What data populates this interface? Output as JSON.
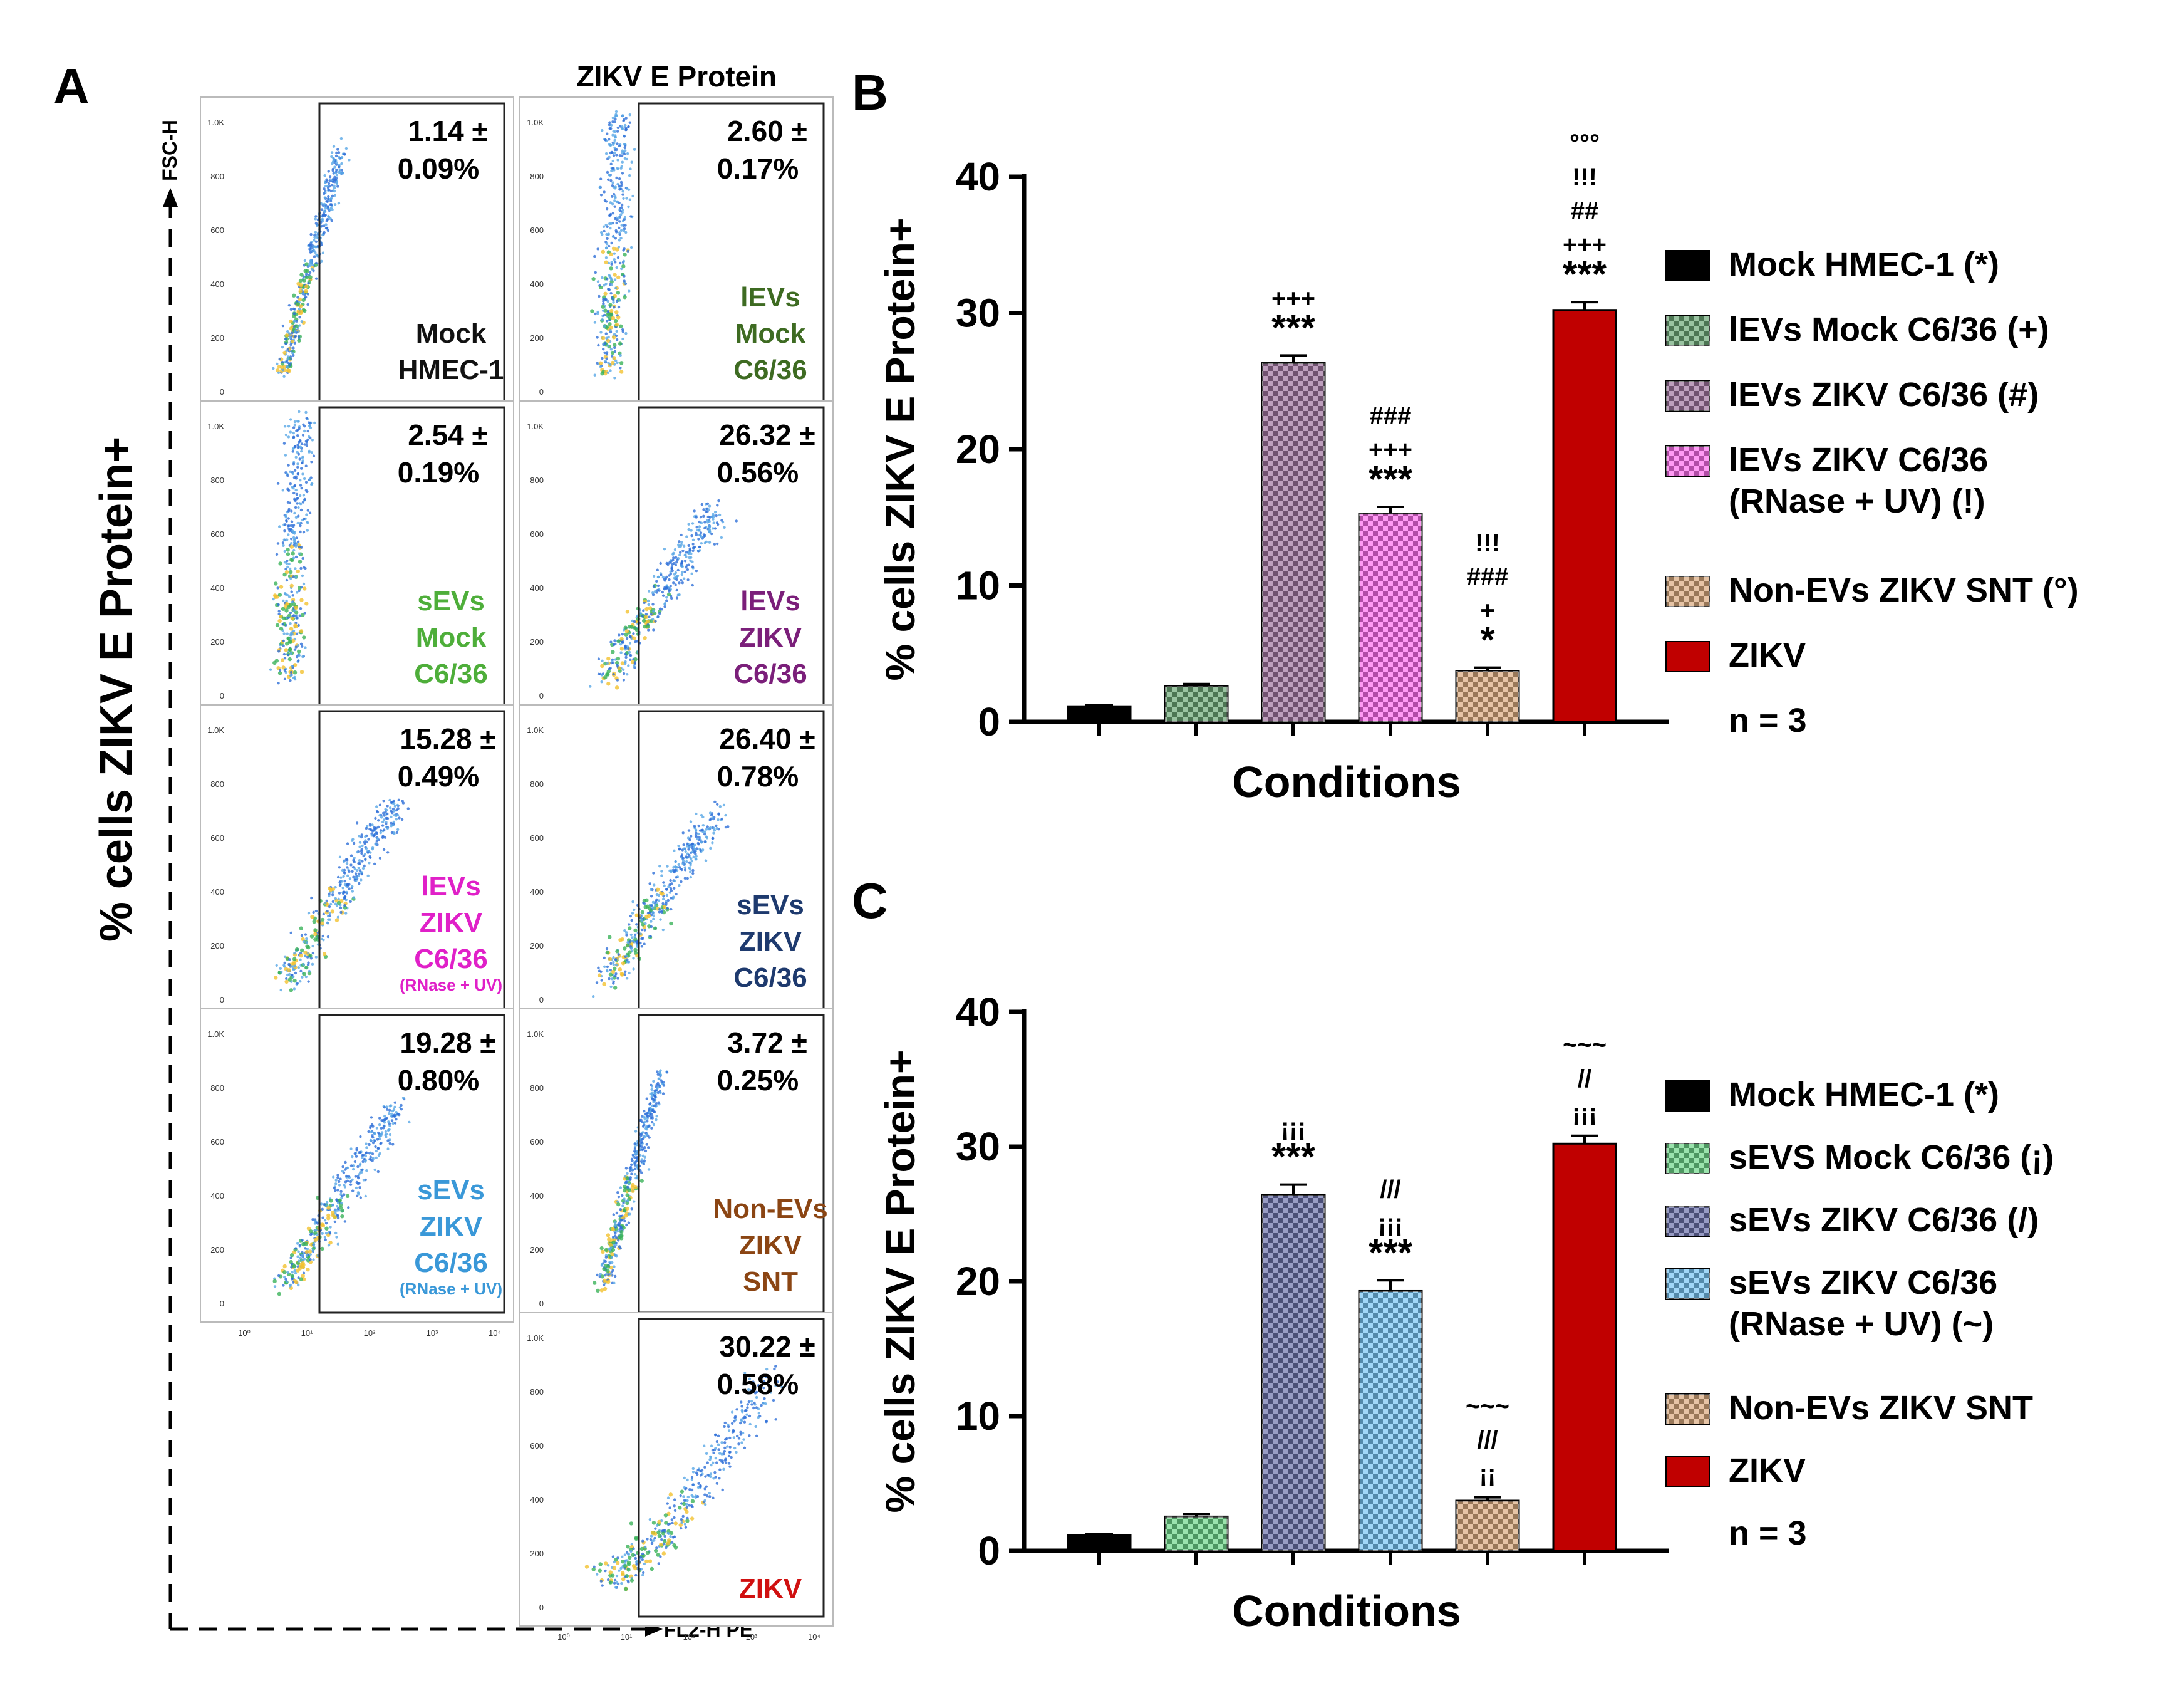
{
  "panel_labels": {
    "a": "A",
    "b": "B",
    "c": "C"
  },
  "flow": {
    "header": "ZIKV E Protein",
    "y_title": "% cells ZIKV E Protein+",
    "y_axis_label": "FSC-H",
    "x_axis_label": "FL2-H PE",
    "y_ticks": [
      "0",
      "200",
      "400",
      "600",
      "800",
      "1.0K"
    ],
    "x_ticks": [
      "10⁰",
      "10¹",
      "10²",
      "10³",
      "10⁴"
    ],
    "plots": [
      {
        "value": "1.14 ±",
        "sd": "0.09%",
        "label": [
          "Mock",
          "HMEC-1"
        ],
        "sub": "",
        "color": "#111111",
        "shape": "narrow",
        "tilt": 0.9
      },
      {
        "value": "2.60 ±",
        "sd": "0.17%",
        "label": [
          "lEVs",
          "Mock",
          "C6/36"
        ],
        "sub": "",
        "color": "#3E6B22",
        "shape": "cloud",
        "tilt": 0.25
      },
      {
        "value": "2.54 ±",
        "sd": "0.19%",
        "label": [
          "sEVs",
          "Mock",
          "C6/36"
        ],
        "sub": "",
        "color": "#4EAE3A",
        "shape": "cloud",
        "tilt": 0.2
      },
      {
        "value": "26.32 ±",
        "sd": "0.56%",
        "label": [
          "lEVs",
          "ZIKV",
          "C6/36"
        ],
        "sub": "",
        "color": "#7B1F7A",
        "shape": "wide",
        "tilt": 0.7
      },
      {
        "value": "15.28 ±",
        "sd": "0.49%",
        "label": [
          "lEVs",
          "ZIKV",
          "C6/36"
        ],
        "sub": "(RNase + UV)",
        "color": "#E020C8",
        "shape": "wide",
        "tilt": 0.75
      },
      {
        "value": "26.40 ±",
        "sd": "0.78%",
        "label": [
          "sEVs",
          "ZIKV",
          "C6/36"
        ],
        "sub": "",
        "color": "#1E3A6E",
        "shape": "wide",
        "tilt": 0.7
      },
      {
        "value": "19.28 ±",
        "sd": "0.80%",
        "label": [
          "sEVs",
          "ZIKV",
          "C6/36"
        ],
        "sub": "(RNase + UV)",
        "color": "#3A98D8",
        "shape": "wide",
        "tilt": 0.75
      },
      {
        "value": "3.72 ±",
        "sd": "0.25%",
        "label": [
          "Non-EVs",
          "ZIKV",
          "SNT"
        ],
        "sub": "",
        "color": "#8B4513",
        "shape": "narrow",
        "tilt": 0.85
      },
      {
        "value": "30.22 ±",
        "sd": "0.58%",
        "label": [
          "ZIKV"
        ],
        "sub": "",
        "color": "#D01010",
        "shape": "broad",
        "tilt": 0.6
      }
    ]
  },
  "chart_data": [
    {
      "type": "bar",
      "panel": "B",
      "ylabel": "% cells ZIKV E Protein+",
      "xlabel": "Conditions",
      "ylim": [
        0,
        40
      ],
      "yticks": [
        0,
        10,
        20,
        30,
        40
      ],
      "categories": [
        "Mock HMEC-1 (*)",
        "lEVs Mock C6/36 (+)",
        "lEVs ZIKV C6/36 (#)",
        "lEVs ZIKV C6/36 (RNase + UV) (!)",
        "Non-EVs ZIKV SNT (°)",
        "ZIKV"
      ],
      "legend": [
        [
          "Mock HMEC-1 (*)"
        ],
        [
          "lEVs Mock C6/36 (+)"
        ],
        [
          "lEVs ZIKV C6/36 (#)"
        ],
        [
          "lEVs ZIKV C6/36",
          "(RNase + UV) (!)"
        ],
        [
          "Non-EVs ZIKV SNT (°)"
        ],
        [
          "ZIKV"
        ]
      ],
      "values": [
        1.14,
        2.6,
        26.32,
        15.28,
        3.72,
        30.22
      ],
      "errors": [
        0.09,
        0.17,
        0.56,
        0.49,
        0.25,
        0.58
      ],
      "colors": [
        "#000000",
        "#1E7A2E",
        "#6E2A6C",
        "#FF22E6",
        "#C87D3A",
        "#C00000"
      ],
      "annotations": [
        [],
        [],
        [
          "***",
          "+++"
        ],
        [
          "***",
          "+++",
          "###"
        ],
        [
          "*",
          "+",
          "###",
          "!!!"
        ],
        [
          "***",
          "+++",
          "##",
          "!!!",
          "°°°"
        ]
      ],
      "note": "n = 3"
    },
    {
      "type": "bar",
      "panel": "C",
      "ylabel": "% cells ZIKV E Protein+",
      "xlabel": "Conditions",
      "ylim": [
        0,
        40
      ],
      "yticks": [
        0,
        10,
        20,
        30,
        40
      ],
      "categories": [
        "Mock HMEC-1 (*)",
        "sEVS Mock C6/36 (¡)",
        "sEVs ZIKV C6/36 (/)",
        "sEVs ZIKV C6/36 (RNase + UV) (~)",
        "Non-EVs ZIKV SNT",
        "ZIKV"
      ],
      "legend": [
        [
          "Mock HMEC-1 (*)"
        ],
        [
          "sEVS Mock C6/36 (¡)"
        ],
        [
          "sEVs ZIKV C6/36 (/)"
        ],
        [
          "sEVs ZIKV C6/36",
          "(RNase + UV) (~)"
        ],
        [
          "Non-EVs ZIKV SNT"
        ],
        [
          "ZIKV"
        ]
      ],
      "values": [
        1.14,
        2.54,
        26.4,
        19.28,
        3.72,
        30.22
      ],
      "errors": [
        0.09,
        0.19,
        0.78,
        0.8,
        0.25,
        0.58
      ],
      "colors": [
        "#000000",
        "#22C24A",
        "#1A237E",
        "#2EA6F0",
        "#C87D3A",
        "#C00000"
      ],
      "annotations": [
        [],
        [],
        [
          "***",
          "¡¡¡"
        ],
        [
          "***",
          "¡¡¡",
          "///"
        ],
        [
          "¡¡",
          "///",
          "~~~"
        ],
        [
          "¡¡¡",
          "//",
          "~~~"
        ]
      ],
      "note": "n = 3"
    }
  ]
}
